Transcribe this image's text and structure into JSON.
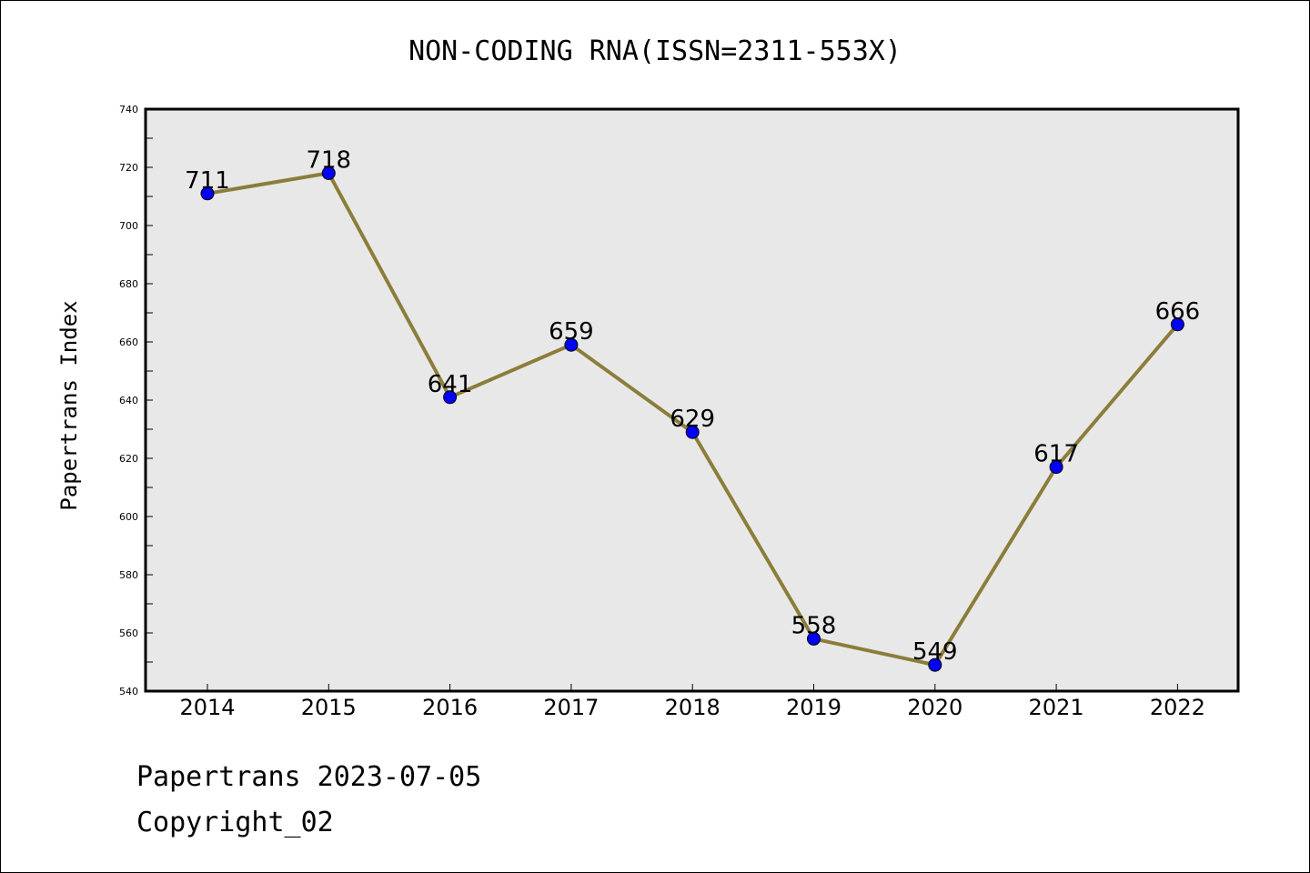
{
  "chart_data": {
    "type": "line",
    "title": "NON-CODING RNA(ISSN=2311-553X)",
    "xlabel": "",
    "ylabel": "Papertrans Index",
    "categories": [
      "2014",
      "2015",
      "2016",
      "2017",
      "2018",
      "2019",
      "2020",
      "2021",
      "2022"
    ],
    "series": [
      {
        "values": [
          711,
          718,
          641,
          659,
          629,
          558,
          549,
          617,
          666
        ]
      }
    ],
    "ylim": [
      540,
      740
    ],
    "yticks": [
      540,
      560,
      580,
      600,
      620,
      640,
      660,
      680,
      700,
      720,
      740
    ],
    "grid": false,
    "colors": {
      "line": "#8b7d3a",
      "marker": "#0000ff",
      "plot_bg": "#e8e8e8"
    }
  },
  "footer": {
    "line1": "Papertrans 2023-07-05",
    "line2": "Copyright_02"
  }
}
